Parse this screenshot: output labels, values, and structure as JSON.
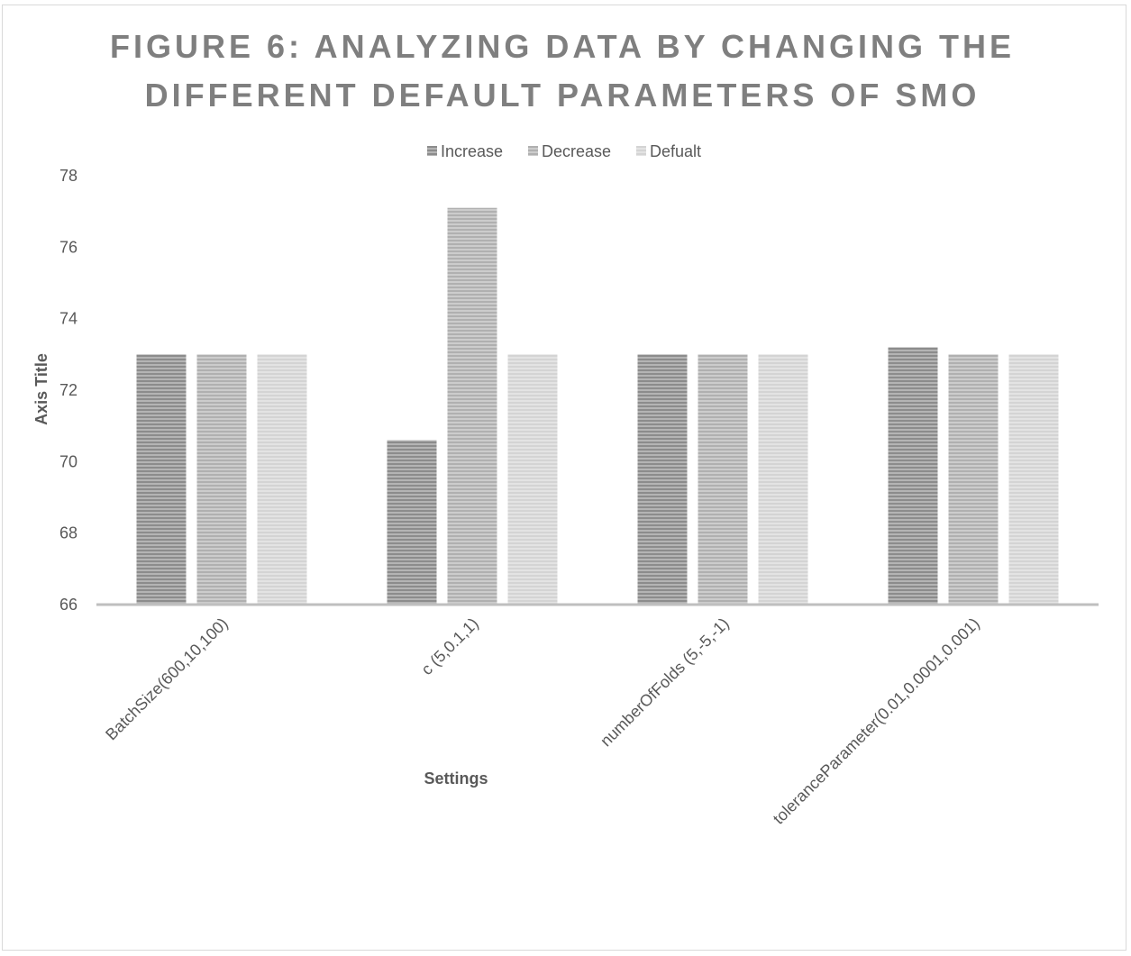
{
  "chart_data": {
    "type": "bar",
    "title_lines": [
      "FIGURE 6: ANALYZING DATA BY CHANGING THE",
      "DIFFERENT DEFAULT PARAMETERS OF SMO"
    ],
    "xlabel": "Settings",
    "ylabel": "Axis Title",
    "ylim": [
      66,
      78
    ],
    "yticks": [
      66,
      68,
      70,
      72,
      74,
      76,
      78
    ],
    "categories": [
      "BatchSize(600,10,100)",
      "c (5,0.1,1)",
      "numberOfFolds (5,-5,-1)",
      "toleranceParameter(0.01,0.0001,0.001)"
    ],
    "series": [
      {
        "name": "Increase",
        "values": [
          73,
          70.6,
          73,
          73.2
        ]
      },
      {
        "name": "Decrease",
        "values": [
          73,
          77.1,
          73,
          73
        ]
      },
      {
        "name": "Defualt",
        "values": [
          73,
          73,
          73,
          73
        ]
      }
    ],
    "legend_position": "top",
    "grid": false,
    "colors": {
      "Increase": "#8c8c8c",
      "Decrease": "#b0b0b0",
      "Defualt": "#d4d4d4",
      "axis": "#bfbfbf"
    }
  }
}
